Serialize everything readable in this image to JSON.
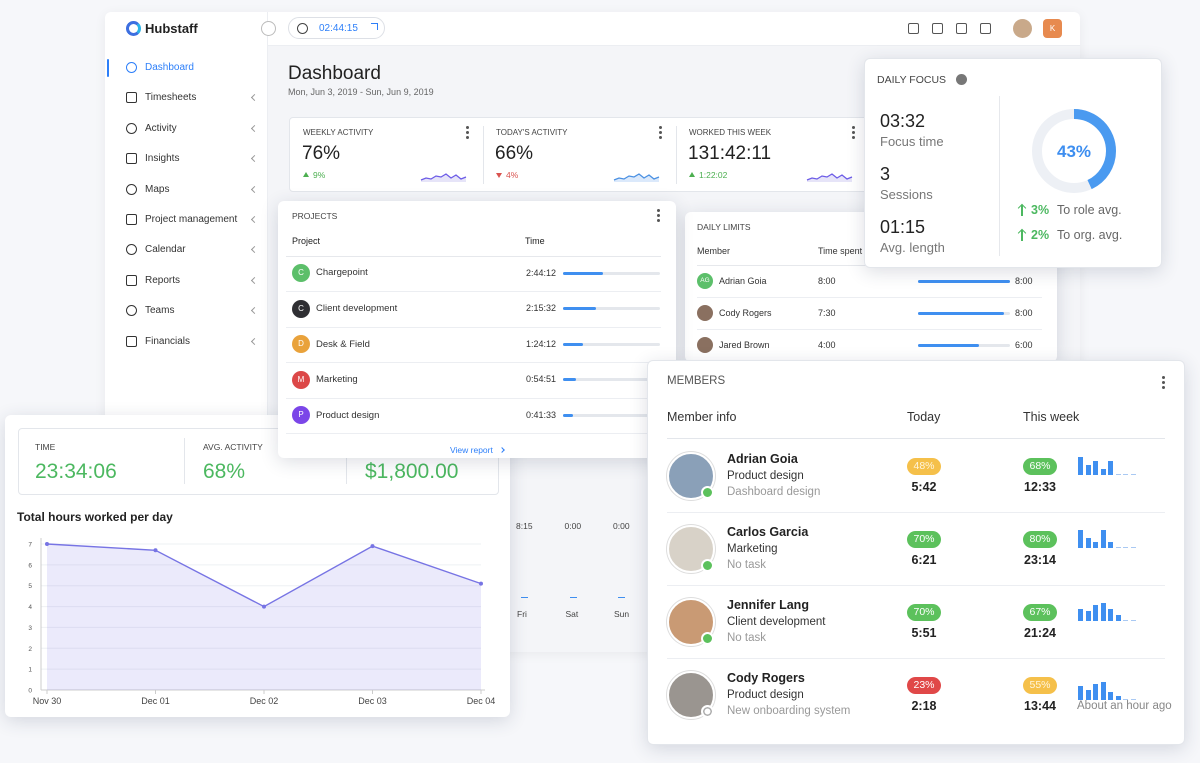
{
  "app": {
    "logo": "Hubstaff",
    "timer": "02:44:15",
    "user_initial": "K",
    "nav": [
      "Dashboard",
      "Timesheets",
      "Activity",
      "Insights",
      "Maps",
      "Project management",
      "Calendar",
      "Reports",
      "Teams",
      "Financials"
    ]
  },
  "dashboard": {
    "title": "Dashboard",
    "date_range": "Mon, Jun 3, 2019 - Sun, Jun 9, 2019",
    "stats": [
      {
        "label": "WEEKLY ACTIVITY",
        "value": "76%",
        "change": "9%",
        "direction": "up"
      },
      {
        "label": "TODAY'S ACTIVITY",
        "value": "66%",
        "change": "4%",
        "direction": "down"
      },
      {
        "label": "WORKED THIS WEEK",
        "value": "131:42:11",
        "change": "1:22:02",
        "direction": "up"
      }
    ]
  },
  "projects": {
    "title": "PROJECTS",
    "columns": [
      "Project",
      "Time"
    ],
    "link": "View report",
    "rows": [
      {
        "initial": "C",
        "name": "Chargepoint",
        "time": "2:44:12",
        "color": "#5cbf6a"
      },
      {
        "initial": "C",
        "name": "Client development",
        "time": "2:15:32",
        "color": "#2f2f33"
      },
      {
        "initial": "D",
        "name": "Desk & Field",
        "time": "1:24:12",
        "color": "#e9a23b"
      },
      {
        "initial": "M",
        "name": "Marketing",
        "time": "0:54:51",
        "color": "#dc4848"
      },
      {
        "initial": "P",
        "name": "Product design",
        "time": "0:41:33",
        "color": "#7b46e8"
      }
    ]
  },
  "daily_limits": {
    "title": "DAILY LIMITS",
    "columns": [
      "Member",
      "Time spent"
    ],
    "rows": [
      {
        "initials": "AG",
        "name": "Adrian Goia",
        "spent": "8:00",
        "limit": "8:00"
      },
      {
        "name": "Cody Rogers",
        "spent": "7:30",
        "limit": "8:00"
      },
      {
        "name": "Jared Brown",
        "spent": "4:00",
        "limit": "6:00"
      }
    ]
  },
  "daily_focus": {
    "title": "DAILY FOCUS",
    "stats": [
      {
        "value": "03:32",
        "label": "Focus time"
      },
      {
        "value": "3",
        "label": "Sessions"
      },
      {
        "value": "01:15",
        "label": "Avg. length"
      }
    ],
    "donut": {
      "value": 43,
      "label": "43%"
    },
    "comparisons": [
      {
        "value": "3%",
        "label": "To role avg."
      },
      {
        "value": "2%",
        "label": "To org. avg."
      }
    ]
  },
  "week_bars": {
    "times": [
      "8:15",
      "0:00",
      "0:00"
    ],
    "days": [
      "Fri",
      "Sat",
      "Sun"
    ]
  },
  "summary": {
    "stats": [
      {
        "label": "TIME",
        "value": "23:34:06"
      },
      {
        "label": "AVG. ACTIVITY",
        "value": "68%"
      },
      {
        "value": "$1,800.00"
      }
    ]
  },
  "chart_data": {
    "type": "line",
    "title": "Total hours worked per day",
    "categories": [
      "Nov 30",
      "Dec 01",
      "Dec 02",
      "Dec 03",
      "Dec 04"
    ],
    "values": [
      7,
      6.7,
      4,
      6.9,
      5.1
    ],
    "color": "#7774e4",
    "ylim": [
      0,
      7
    ],
    "yticks": [
      0,
      1,
      2,
      3,
      4,
      5,
      6,
      7
    ],
    "grid": true
  },
  "members": {
    "title": "MEMBERS",
    "columns": [
      "Member info",
      "Today",
      "This week"
    ],
    "rows": [
      {
        "name": "Adrian Goia",
        "project": "Product design",
        "task": "Dashboard design",
        "today_pct": "48%",
        "today_color": "#f5c04a",
        "today_time": "5:42",
        "week_pct": "68%",
        "week_color": "#5cc15c",
        "week_time": "12:33",
        "online": true
      },
      {
        "name": "Carlos Garcia",
        "project": "Marketing",
        "task": "No task",
        "today_pct": "70%",
        "today_color": "#5cc15c",
        "today_time": "6:21",
        "week_pct": "80%",
        "week_color": "#5cc15c",
        "week_time": "23:14",
        "online": true
      },
      {
        "name": "Jennifer Lang",
        "project": "Client development",
        "task": "No task",
        "today_pct": "70%",
        "today_color": "#5cc15c",
        "today_time": "5:51",
        "week_pct": "67%",
        "week_color": "#5cc15c",
        "week_time": "21:24",
        "online": true
      },
      {
        "name": "Cody Rogers",
        "project": "Product design",
        "task": "New onboarding system",
        "today_pct": "23%",
        "today_color": "#e04848",
        "today_time": "2:18",
        "week_pct": "55%",
        "week_color": "#f5c04a",
        "week_time": "13:44",
        "online": false,
        "last_seen": "About an hour ago"
      }
    ]
  }
}
